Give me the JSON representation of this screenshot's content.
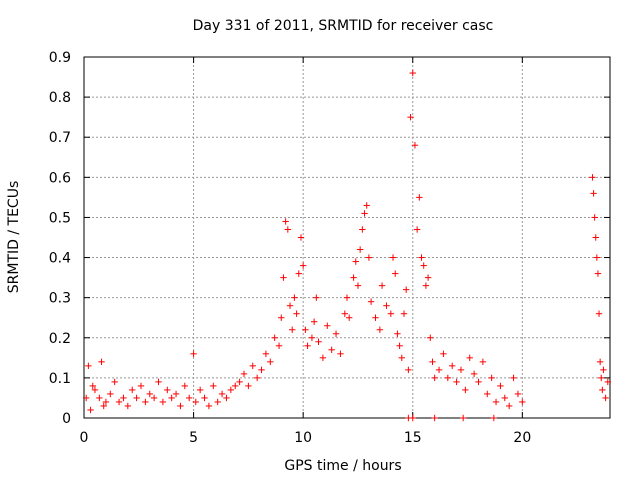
{
  "chart_data": {
    "type": "scatter",
    "title": "Day 331 of 2011, SRMTID for receiver casc",
    "xlabel": "GPS time / hours",
    "ylabel": "SRMTID / TECUs",
    "xlim": [
      0,
      24
    ],
    "ylim": [
      0,
      0.9
    ],
    "x_ticks": [
      0,
      5,
      10,
      15,
      20
    ],
    "x_tick_labels": [
      "0",
      "5",
      "10",
      "15",
      "20"
    ],
    "y_ticks": [
      0,
      0.1,
      0.2,
      0.3,
      0.4,
      0.5,
      0.6,
      0.7,
      0.8,
      0.9
    ],
    "y_tick_labels": [
      "0",
      "0.1",
      "0.2",
      "0.3",
      "0.4",
      "0.5",
      "0.6",
      "0.7",
      "0.8",
      "0.9"
    ],
    "grid": true,
    "marker": "plus",
    "series": [
      {
        "name": "SRMTID",
        "color": "#ff0000",
        "points": [
          [
            0.1,
            0.05
          ],
          [
            0.2,
            0.13
          ],
          [
            0.3,
            0.02
          ],
          [
            0.4,
            0.08
          ],
          [
            0.5,
            0.07
          ],
          [
            0.7,
            0.05
          ],
          [
            0.8,
            0.14
          ],
          [
            0.9,
            0.03
          ],
          [
            1.0,
            0.04
          ],
          [
            1.2,
            0.06
          ],
          [
            1.4,
            0.09
          ],
          [
            1.6,
            0.04
          ],
          [
            1.8,
            0.05
          ],
          [
            2.0,
            0.03
          ],
          [
            2.2,
            0.07
          ],
          [
            2.4,
            0.05
          ],
          [
            2.6,
            0.08
          ],
          [
            2.8,
            0.04
          ],
          [
            3.0,
            0.06
          ],
          [
            3.2,
            0.05
          ],
          [
            3.4,
            0.09
          ],
          [
            3.6,
            0.04
          ],
          [
            3.8,
            0.07
          ],
          [
            4.0,
            0.05
          ],
          [
            4.2,
            0.06
          ],
          [
            4.4,
            0.03
          ],
          [
            4.6,
            0.08
          ],
          [
            4.8,
            0.05
          ],
          [
            5.0,
            0.16
          ],
          [
            5.1,
            0.04
          ],
          [
            5.3,
            0.07
          ],
          [
            5.5,
            0.05
          ],
          [
            5.7,
            0.03
          ],
          [
            5.9,
            0.08
          ],
          [
            6.1,
            0.04
          ],
          [
            6.3,
            0.06
          ],
          [
            6.5,
            0.05
          ],
          [
            6.7,
            0.07
          ],
          [
            6.9,
            0.08
          ],
          [
            7.1,
            0.09
          ],
          [
            7.3,
            0.11
          ],
          [
            7.5,
            0.08
          ],
          [
            7.7,
            0.13
          ],
          [
            7.9,
            0.1
          ],
          [
            8.1,
            0.12
          ],
          [
            8.3,
            0.16
          ],
          [
            8.5,
            0.14
          ],
          [
            8.7,
            0.2
          ],
          [
            8.9,
            0.18
          ],
          [
            9.0,
            0.25
          ],
          [
            9.1,
            0.35
          ],
          [
            9.2,
            0.49
          ],
          [
            9.3,
            0.47
          ],
          [
            9.4,
            0.28
          ],
          [
            9.5,
            0.22
          ],
          [
            9.6,
            0.3
          ],
          [
            9.7,
            0.26
          ],
          [
            9.8,
            0.36
          ],
          [
            9.9,
            0.45
          ],
          [
            10.0,
            0.38
          ],
          [
            10.1,
            0.22
          ],
          [
            10.2,
            0.18
          ],
          [
            10.4,
            0.2
          ],
          [
            10.5,
            0.24
          ],
          [
            10.6,
            0.3
          ],
          [
            10.7,
            0.19
          ],
          [
            10.9,
            0.15
          ],
          [
            11.1,
            0.23
          ],
          [
            11.3,
            0.17
          ],
          [
            11.5,
            0.21
          ],
          [
            11.7,
            0.16
          ],
          [
            11.9,
            0.26
          ],
          [
            12.0,
            0.3
          ],
          [
            12.1,
            0.25
          ],
          [
            12.3,
            0.35
          ],
          [
            12.4,
            0.39
          ],
          [
            12.5,
            0.33
          ],
          [
            12.6,
            0.42
          ],
          [
            12.7,
            0.47
          ],
          [
            12.8,
            0.51
          ],
          [
            12.9,
            0.53
          ],
          [
            13.0,
            0.4
          ],
          [
            13.1,
            0.29
          ],
          [
            13.3,
            0.25
          ],
          [
            13.5,
            0.22
          ],
          [
            13.6,
            0.33
          ],
          [
            13.8,
            0.28
          ],
          [
            14.0,
            0.26
          ],
          [
            14.1,
            0.4
          ],
          [
            14.2,
            0.36
          ],
          [
            14.3,
            0.21
          ],
          [
            14.4,
            0.18
          ],
          [
            14.5,
            0.15
          ],
          [
            14.6,
            0.26
          ],
          [
            14.7,
            0.32
          ],
          [
            14.8,
            0.12
          ],
          [
            14.9,
            0.75
          ],
          [
            15.0,
            0.86
          ],
          [
            15.1,
            0.68
          ],
          [
            15.2,
            0.47
          ],
          [
            15.3,
            0.55
          ],
          [
            15.4,
            0.4
          ],
          [
            15.5,
            0.38
          ],
          [
            15.6,
            0.33
          ],
          [
            15.7,
            0.35
          ],
          [
            15.8,
            0.2
          ],
          [
            15.9,
            0.14
          ],
          [
            16.0,
            0.1
          ],
          [
            16.2,
            0.12
          ],
          [
            16.4,
            0.16
          ],
          [
            16.6,
            0.1
          ],
          [
            16.8,
            0.13
          ],
          [
            17.0,
            0.09
          ],
          [
            17.2,
            0.12
          ],
          [
            17.4,
            0.07
          ],
          [
            17.6,
            0.15
          ],
          [
            17.8,
            0.11
          ],
          [
            18.0,
            0.09
          ],
          [
            18.2,
            0.14
          ],
          [
            18.4,
            0.06
          ],
          [
            18.6,
            0.1
          ],
          [
            18.8,
            0.04
          ],
          [
            19.0,
            0.08
          ],
          [
            19.2,
            0.05
          ],
          [
            19.4,
            0.03
          ],
          [
            19.6,
            0.1
          ],
          [
            19.8,
            0.06
          ],
          [
            20.0,
            0.04
          ],
          [
            23.2,
            0.6
          ],
          [
            23.25,
            0.56
          ],
          [
            23.3,
            0.5
          ],
          [
            23.35,
            0.45
          ],
          [
            23.4,
            0.4
          ],
          [
            23.45,
            0.36
          ],
          [
            23.5,
            0.26
          ],
          [
            23.55,
            0.14
          ],
          [
            23.6,
            0.1
          ],
          [
            23.65,
            0.07
          ],
          [
            23.7,
            0.12
          ],
          [
            23.8,
            0.05
          ],
          [
            23.9,
            0.09
          ],
          [
            14.8,
            0.0
          ],
          [
            15.0,
            0.0
          ],
          [
            16.0,
            0.0
          ],
          [
            17.3,
            0.0
          ],
          [
            18.7,
            0.0
          ]
        ]
      }
    ]
  }
}
